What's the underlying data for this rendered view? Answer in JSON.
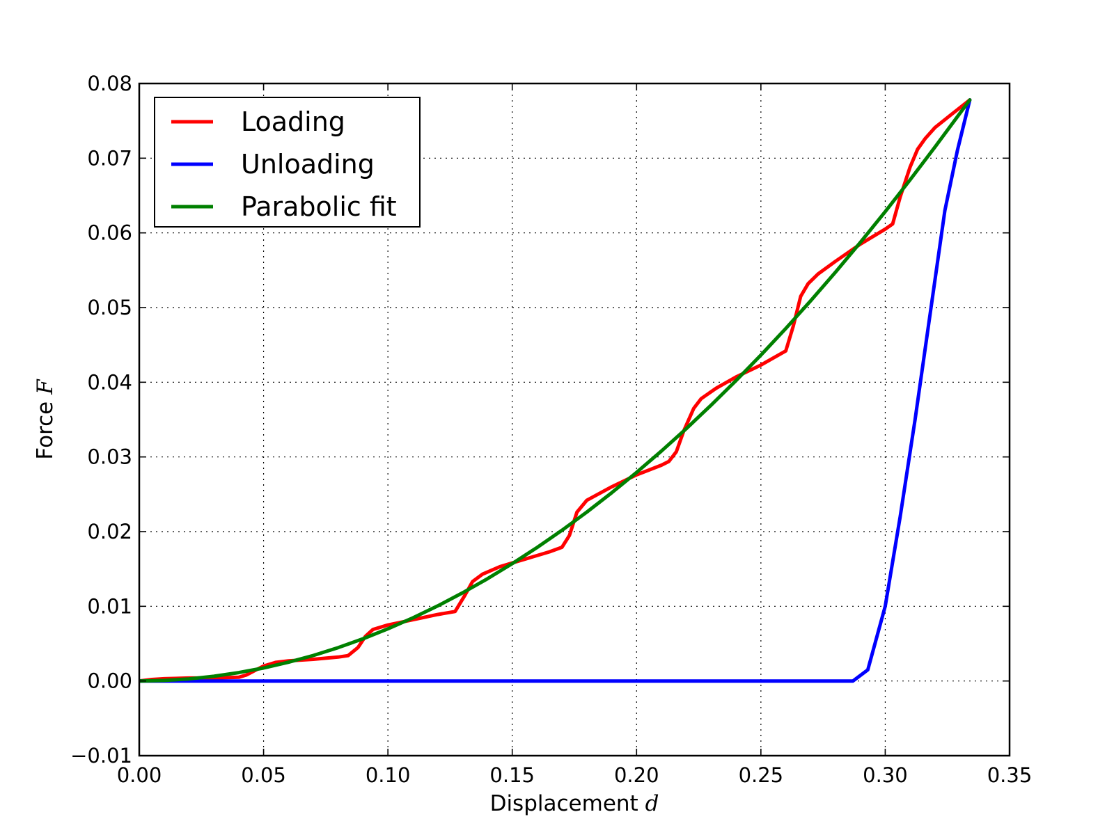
{
  "chart_data": {
    "type": "line",
    "title": "",
    "xlabel": "Displacement",
    "xlabel_var": "d",
    "ylabel": "Force",
    "ylabel_var": "F",
    "xlim": [
      0.0,
      0.35
    ],
    "ylim": [
      -0.01,
      0.08
    ],
    "xticks": [
      0.0,
      0.05,
      0.1,
      0.15,
      0.2,
      0.25,
      0.3,
      0.35
    ],
    "xtick_labels": [
      "0.00",
      "0.05",
      "0.10",
      "0.15",
      "0.20",
      "0.25",
      "0.30",
      "0.35"
    ],
    "yticks": [
      -0.01,
      0.0,
      0.01,
      0.02,
      0.03,
      0.04,
      0.05,
      0.06,
      0.07,
      0.08
    ],
    "ytick_labels": [
      "−0.01",
      "0.00",
      "0.01",
      "0.02",
      "0.03",
      "0.04",
      "0.05",
      "0.06",
      "0.07",
      "0.08"
    ],
    "grid": true,
    "legend_position": "top-left",
    "series": [
      {
        "name": "Loading",
        "color": "#ff0000",
        "x": [
          0.0,
          0.005,
          0.01,
          0.02,
          0.03,
          0.04,
          0.043,
          0.047,
          0.05,
          0.055,
          0.06,
          0.07,
          0.08,
          0.084,
          0.088,
          0.091,
          0.094,
          0.1,
          0.11,
          0.12,
          0.127,
          0.131,
          0.134,
          0.138,
          0.145,
          0.155,
          0.165,
          0.17,
          0.173,
          0.176,
          0.18,
          0.19,
          0.2,
          0.21,
          0.213,
          0.216,
          0.219,
          0.223,
          0.226,
          0.232,
          0.24,
          0.25,
          0.26,
          0.263,
          0.266,
          0.269,
          0.273,
          0.28,
          0.29,
          0.3,
          0.303,
          0.306,
          0.31,
          0.313,
          0.316,
          0.32,
          0.326,
          0.334
        ],
        "y": [
          0.0,
          0.0002,
          0.0003,
          0.0004,
          0.0004,
          0.0005,
          0.0008,
          0.0015,
          0.002,
          0.0025,
          0.0027,
          0.0029,
          0.0032,
          0.0034,
          0.0045,
          0.006,
          0.0069,
          0.0075,
          0.0082,
          0.0089,
          0.0093,
          0.0115,
          0.0133,
          0.0143,
          0.0153,
          0.0163,
          0.0173,
          0.0179,
          0.0195,
          0.0226,
          0.0242,
          0.026,
          0.0276,
          0.0289,
          0.0294,
          0.0307,
          0.0335,
          0.0365,
          0.0378,
          0.0392,
          0.0407,
          0.0423,
          0.0442,
          0.0475,
          0.0515,
          0.0532,
          0.0545,
          0.0562,
          0.0585,
          0.0605,
          0.0612,
          0.0648,
          0.0688,
          0.0712,
          0.0726,
          0.0741,
          0.0757,
          0.0778
        ]
      },
      {
        "name": "Unloading",
        "color": "#0000ff",
        "x": [
          0.0,
          0.287,
          0.293,
          0.3,
          0.306,
          0.312,
          0.318,
          0.324,
          0.329,
          0.334
        ],
        "y": [
          0.0,
          0.0,
          0.0015,
          0.01,
          0.022,
          0.035,
          0.049,
          0.063,
          0.071,
          0.0778
        ]
      },
      {
        "name": "Parabolic fit",
        "color": "#008000",
        "x": [
          0.0,
          0.01,
          0.02,
          0.03,
          0.04,
          0.05,
          0.06,
          0.07,
          0.08,
          0.09,
          0.1,
          0.11,
          0.12,
          0.13,
          0.14,
          0.15,
          0.16,
          0.17,
          0.18,
          0.19,
          0.2,
          0.21,
          0.22,
          0.23,
          0.24,
          0.25,
          0.26,
          0.27,
          0.28,
          0.29,
          0.3,
          0.31,
          0.32,
          0.334
        ],
        "y": [
          0.0,
          7e-05,
          0.00028,
          0.00063,
          0.00112,
          0.00174,
          0.00251,
          0.00342,
          0.00447,
          0.00565,
          0.00698,
          0.00845,
          0.01005,
          0.0118,
          0.01368,
          0.01571,
          0.01788,
          0.02018,
          0.02262,
          0.02521,
          0.02793,
          0.03079,
          0.03379,
          0.03694,
          0.04022,
          0.04364,
          0.0472,
          0.0509,
          0.05474,
          0.05872,
          0.06284,
          0.0671,
          0.0715,
          0.0778
        ]
      }
    ]
  }
}
